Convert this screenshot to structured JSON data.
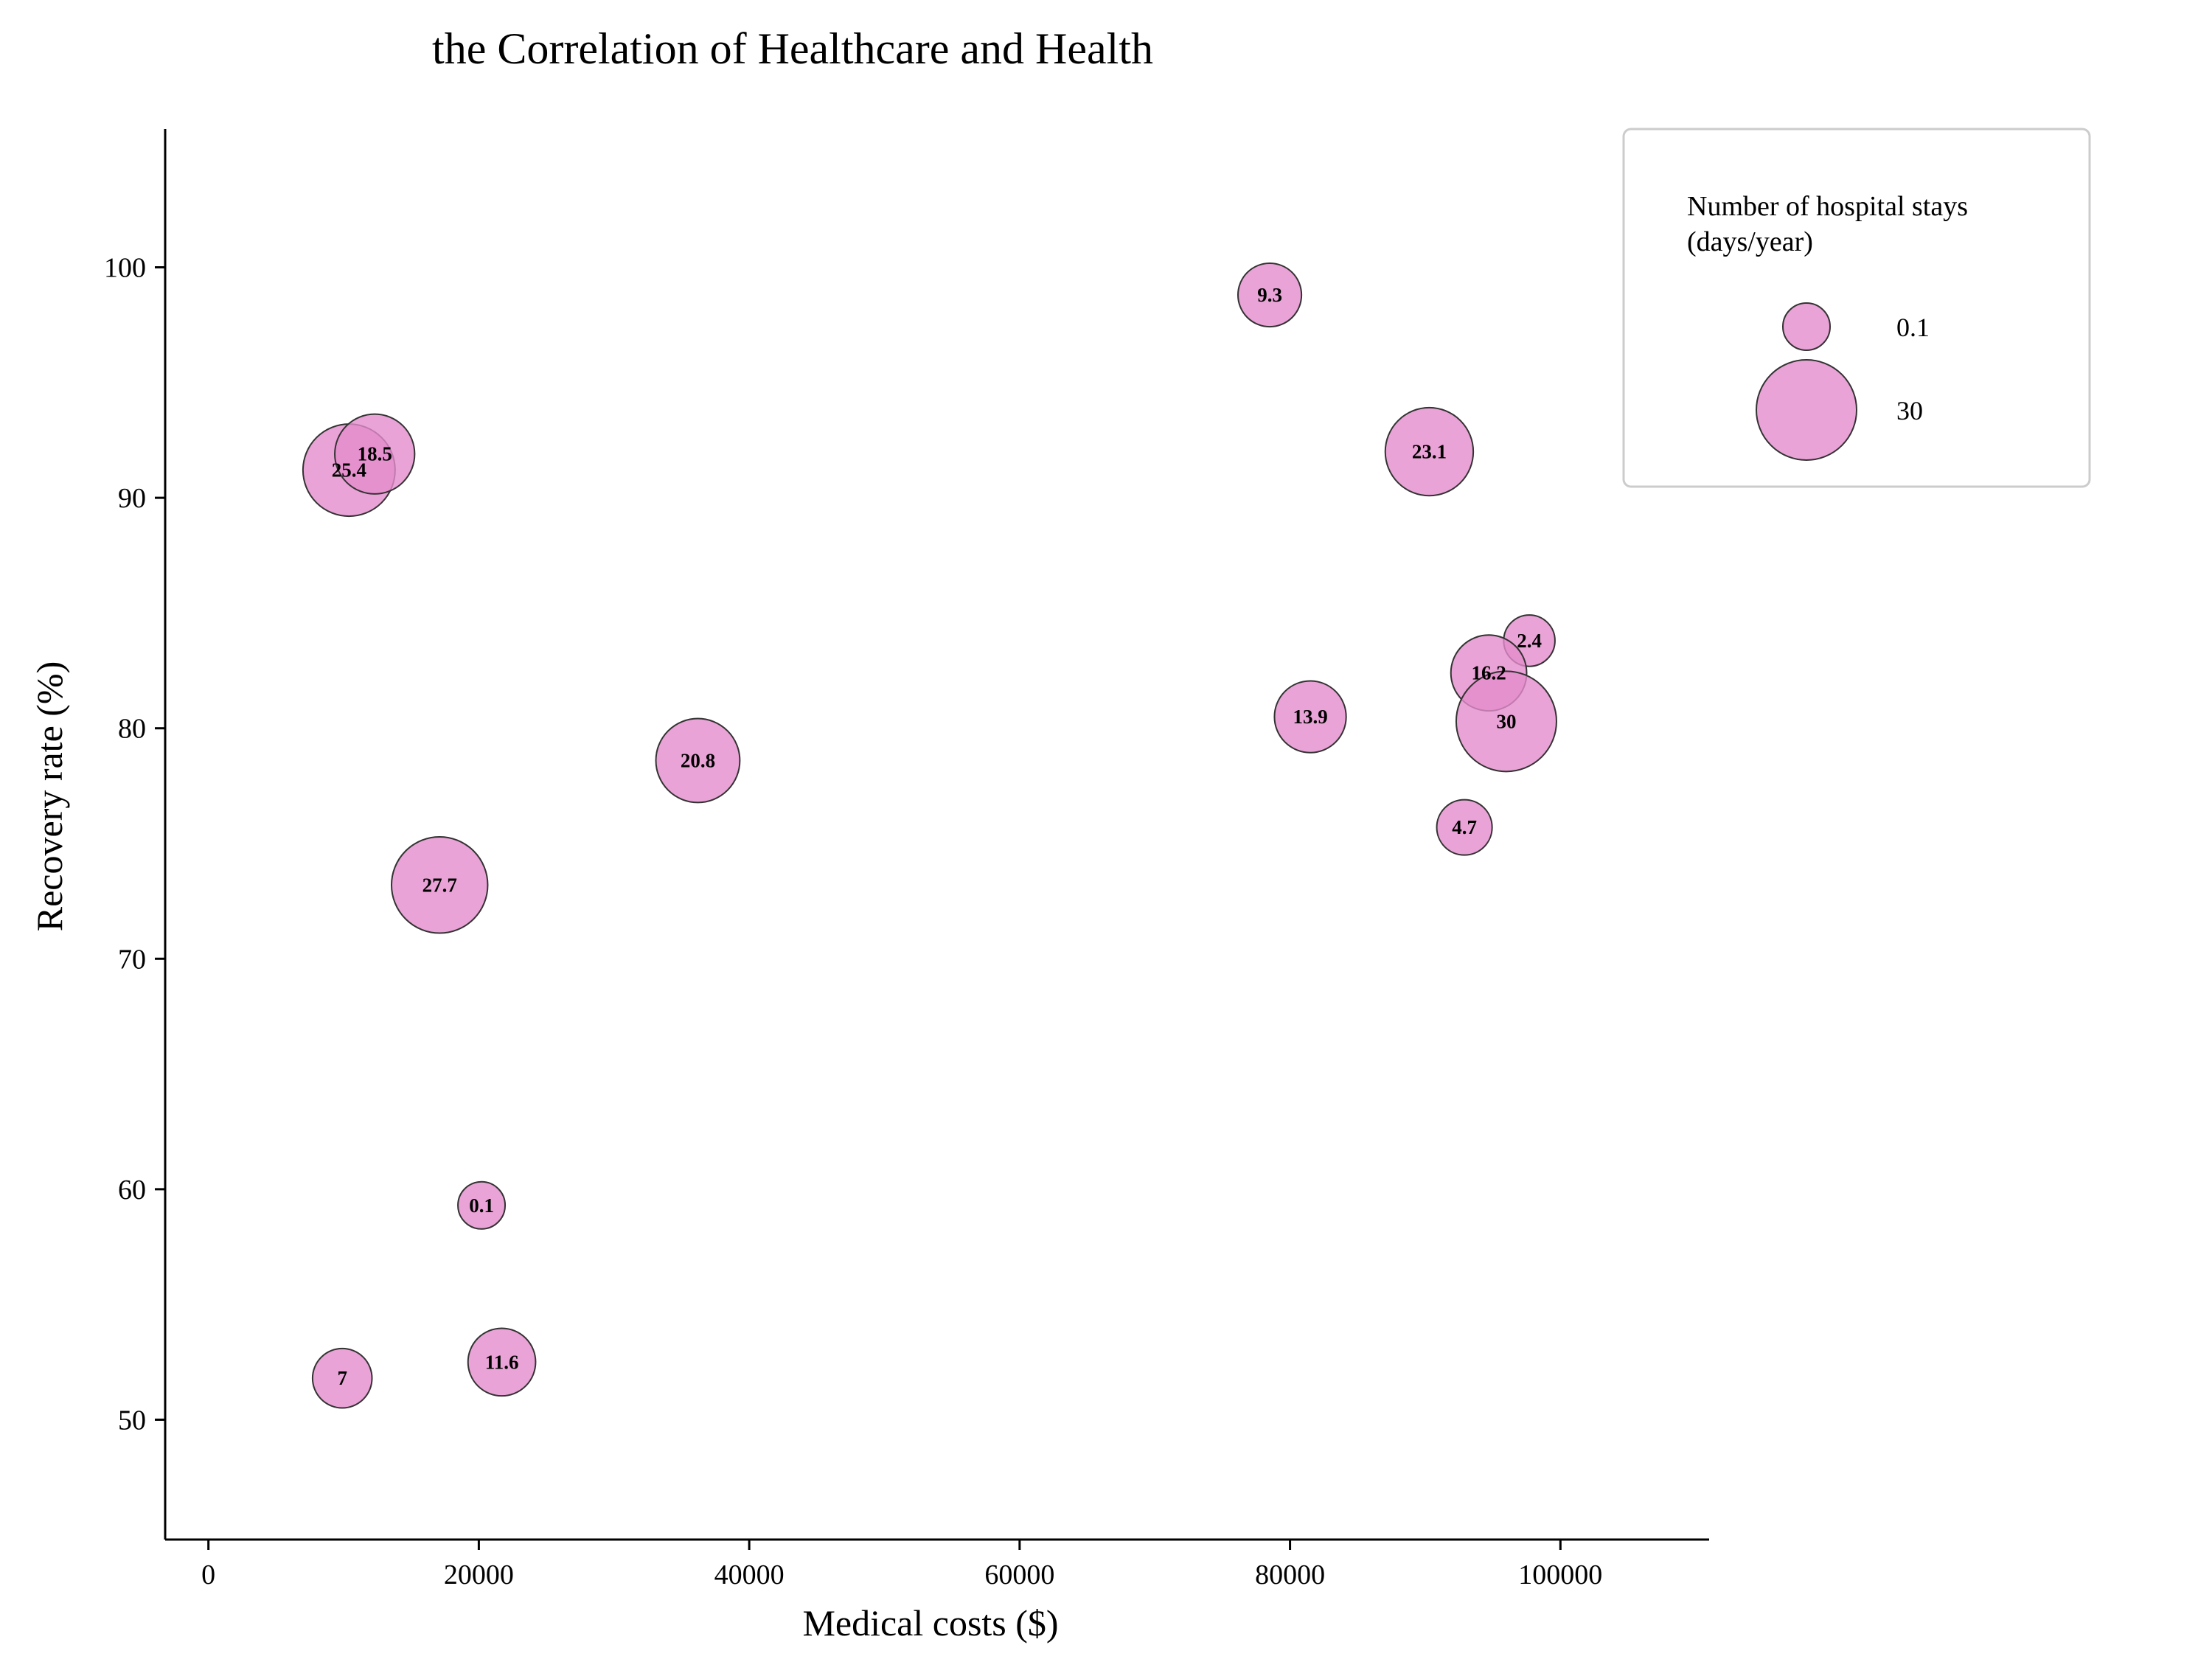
{
  "chart_data": {
    "type": "scatter",
    "title": "the Correlation of Healthcare and Health",
    "xlabel": "Medical costs ($)",
    "ylabel": "Recovery rate (%)",
    "xlim": [
      -3200,
      111000
    ],
    "ylim": [
      44.8,
      106
    ],
    "xticks": [
      0,
      20000,
      40000,
      60000,
      80000,
      100000
    ],
    "yticks": [
      50,
      60,
      70,
      80,
      90,
      100
    ],
    "grid": false,
    "legend": {
      "title_lines": [
        "Number of hospital stays",
        "(days/year)"
      ],
      "entries": [
        "0.1",
        "30"
      ],
      "placement": "top-right"
    },
    "bubble_color": "#e38ccc",
    "edge_color": "#333333",
    "points": [
      {
        "x": 10400,
        "y": 91.2,
        "size": 25.4,
        "label": "25.4"
      },
      {
        "x": 12300,
        "y": 91.9,
        "size": 18.5,
        "label": "18.5"
      },
      {
        "x": 78500,
        "y": 98.8,
        "size": 9.3,
        "label": "9.3"
      },
      {
        "x": 90300,
        "y": 92.0,
        "size": 23.1,
        "label": "23.1"
      },
      {
        "x": 97700,
        "y": 83.8,
        "size": 2.4,
        "label": "2.4"
      },
      {
        "x": 94700,
        "y": 82.4,
        "size": 16.2,
        "label": "16.2"
      },
      {
        "x": 81500,
        "y": 80.5,
        "size": 13.9,
        "label": "13.9"
      },
      {
        "x": 96000,
        "y": 80.3,
        "size": 30,
        "label": "30"
      },
      {
        "x": 36200,
        "y": 78.6,
        "size": 20.8,
        "label": "20.8"
      },
      {
        "x": 92900,
        "y": 75.7,
        "size": 4.7,
        "label": "4.7"
      },
      {
        "x": 17100,
        "y": 73.2,
        "size": 27.7,
        "label": "27.7"
      },
      {
        "x": 20200,
        "y": 59.3,
        "size": 0.1,
        "label": "0.1"
      },
      {
        "x": 21700,
        "y": 52.5,
        "size": 11.6,
        "label": "11.6"
      },
      {
        "x": 9900,
        "y": 51.8,
        "size": 7,
        "label": "7"
      }
    ]
  }
}
